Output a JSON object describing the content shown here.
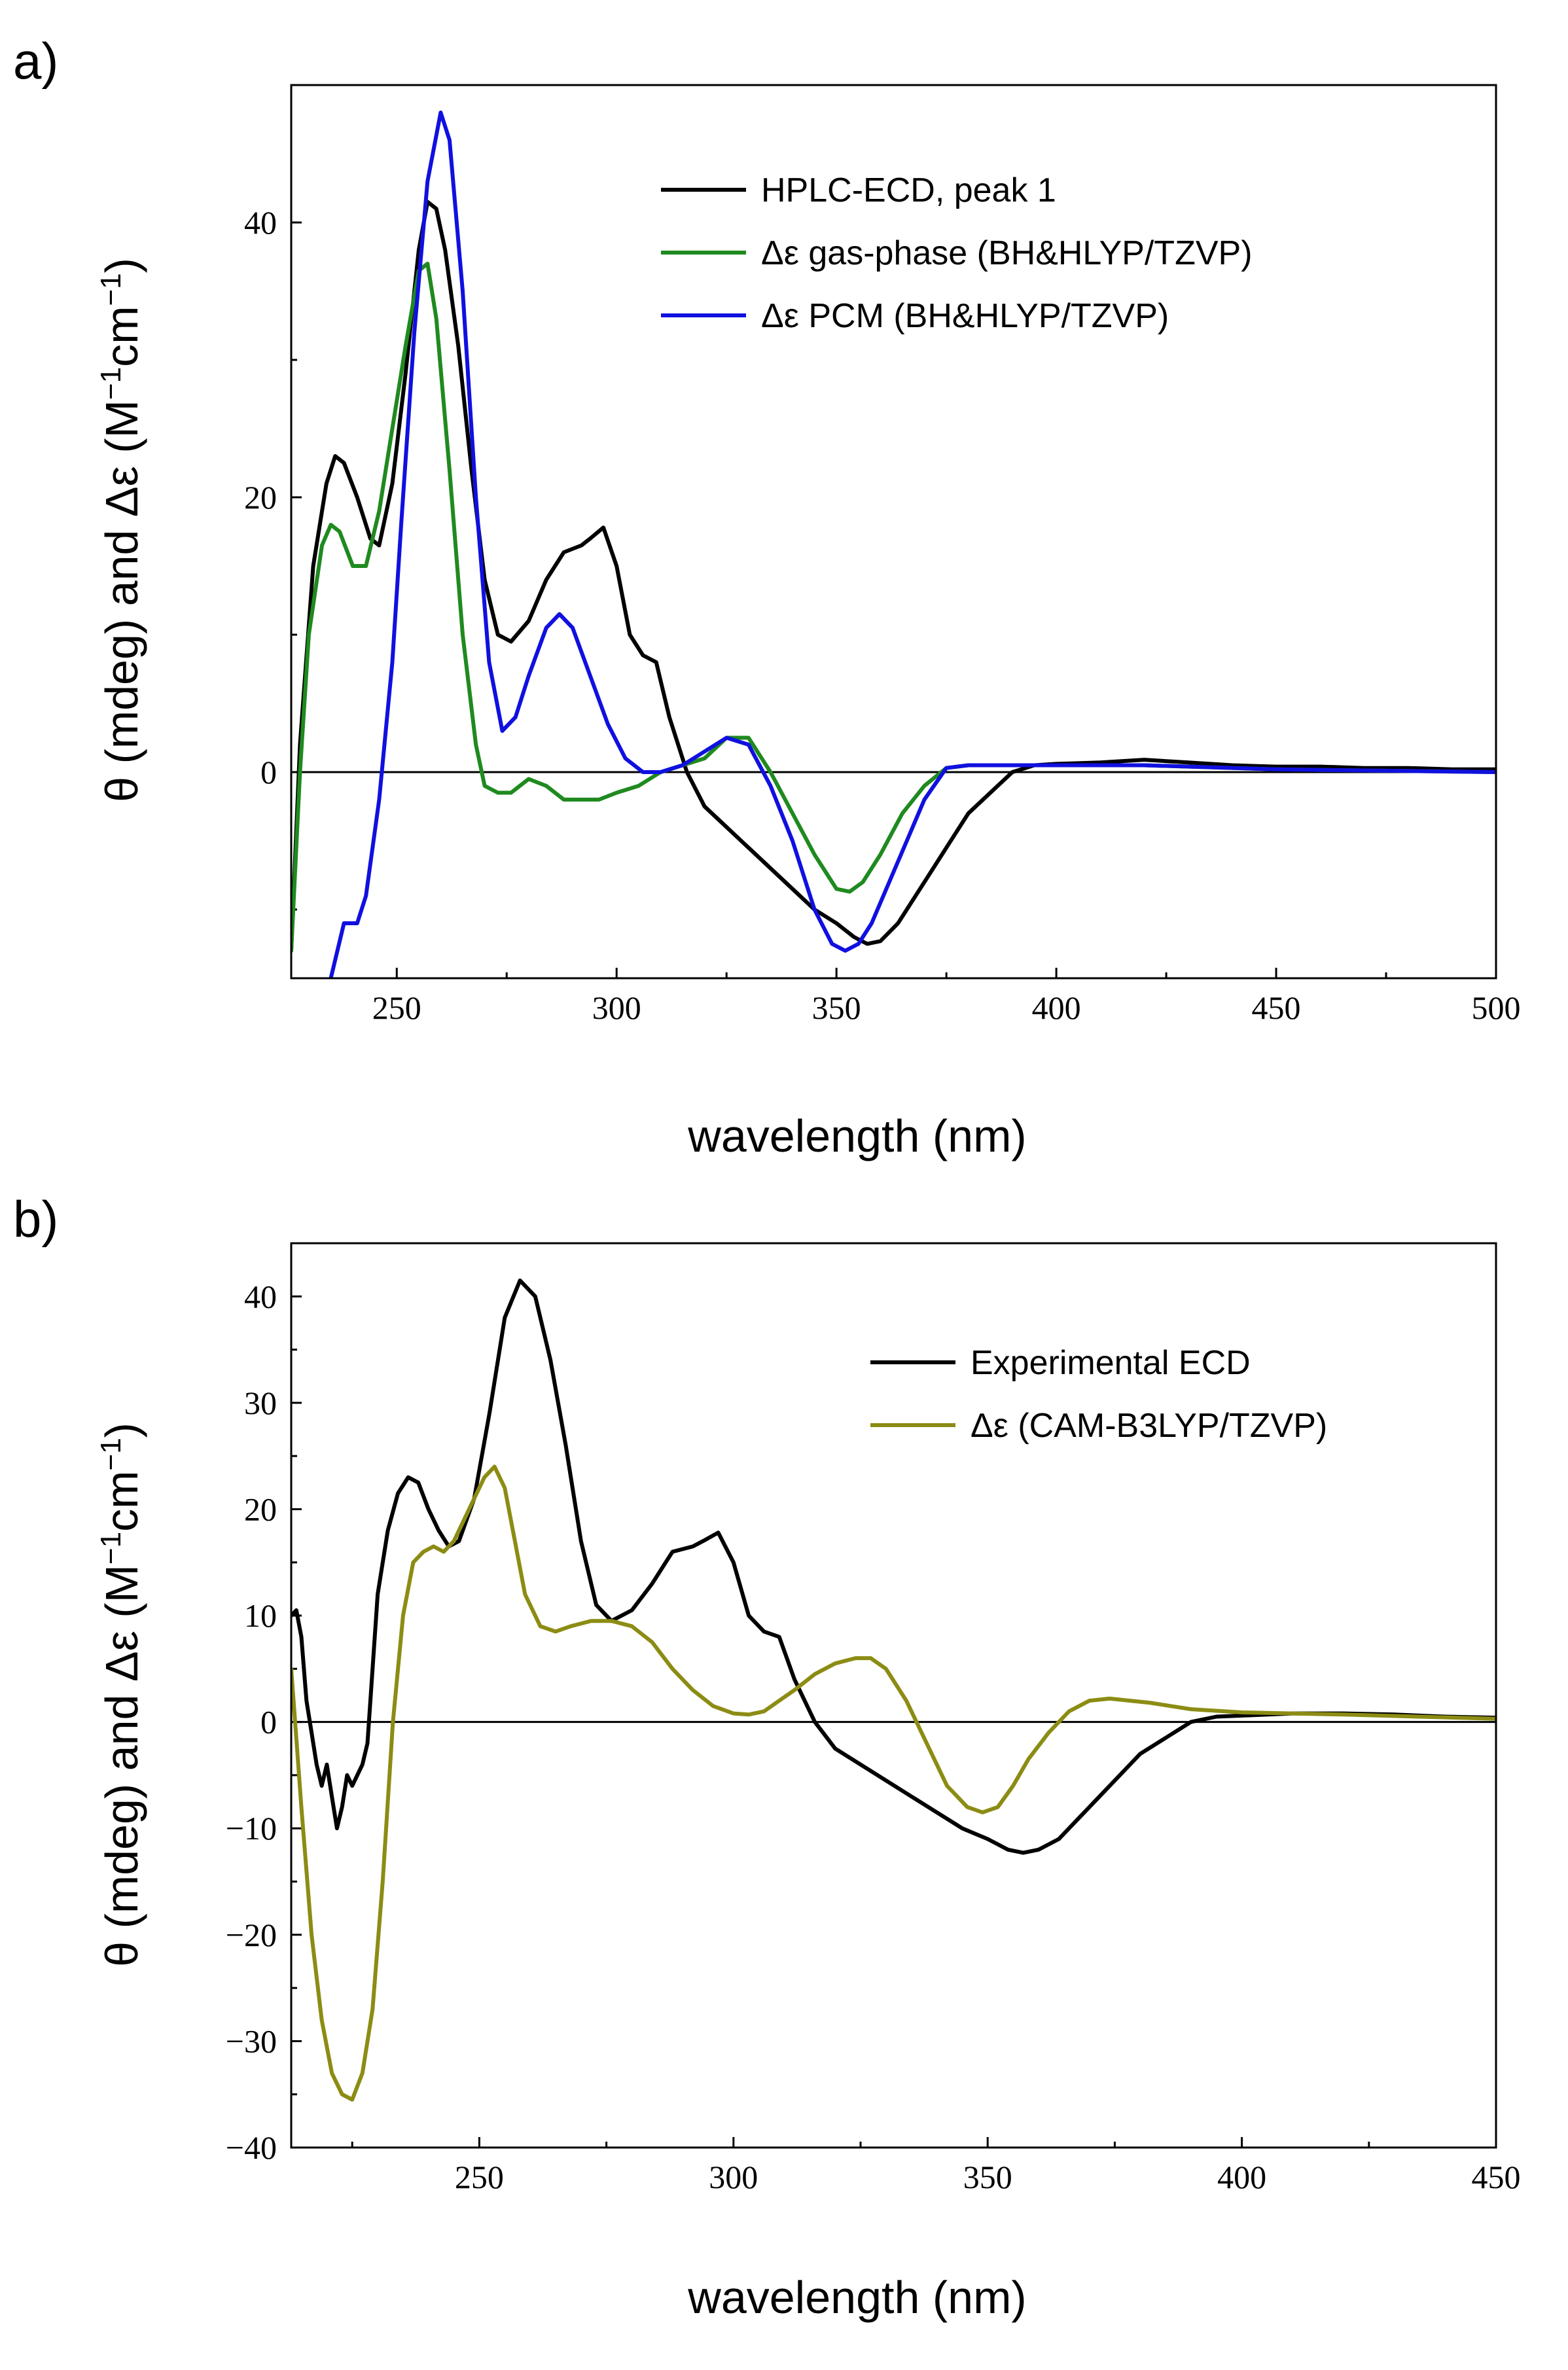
{
  "chart_data": [
    {
      "type": "line",
      "panel_label": "a)",
      "xlabel": "wavelength (nm)",
      "ylabel": "θ (mdeg) and Δε (M⁻¹cm⁻¹)",
      "ylabel_parts": {
        "prefix": "θ (mdeg) and Δε (M",
        "sup1": "−1",
        "mid": "cm",
        "sup2": "−1",
        "suffix": ")"
      },
      "xlim": [
        226,
        500
      ],
      "ylim": [
        -15,
        50
      ],
      "xticks": [
        250,
        300,
        350,
        400,
        450,
        500
      ],
      "xtick_labels": [
        "250",
        "300",
        "350",
        "400",
        "450",
        "500"
      ],
      "yticks": [
        0,
        20,
        40
      ],
      "ytick_labels": [
        "0",
        "20",
        "40"
      ],
      "zero_line": true,
      "legend_position": "top-right",
      "series": [
        {
          "name": "HPLC-ECD, peak 1",
          "color": "#000000",
          "x": [
            226,
            228,
            231,
            234,
            236,
            238,
            241,
            244,
            246,
            249,
            252,
            255,
            257,
            259,
            261,
            264,
            267,
            270,
            273,
            276,
            280,
            284,
            288,
            292,
            294,
            297,
            300,
            303,
            306,
            309,
            312,
            316,
            320,
            325,
            330,
            335,
            340,
            345,
            350,
            354,
            357,
            360,
            364,
            368,
            372,
            376,
            380,
            385,
            390,
            395,
            400,
            410,
            420,
            430,
            440,
            450,
            460,
            470,
            480,
            490,
            500
          ],
          "y": [
            -13,
            2,
            15,
            21,
            23,
            22.5,
            20,
            17,
            16.5,
            21,
            29,
            38,
            41.5,
            41,
            38,
            31,
            22,
            14,
            10,
            9.5,
            11,
            14,
            16,
            16.5,
            17,
            17.8,
            15,
            10,
            8.5,
            8,
            4,
            0,
            -2.5,
            -4,
            -5.5,
            -7,
            -8.5,
            -10,
            -11,
            -12,
            -12.5,
            -12.3,
            -11,
            -9,
            -7,
            -5,
            -3,
            -1.5,
            0,
            0.5,
            0.6,
            0.7,
            0.9,
            0.7,
            0.5,
            0.4,
            0.4,
            0.3,
            0.3,
            0.2,
            0.2
          ]
        },
        {
          "name": "Δε gas-phase (BH&HLYP/TZVP)",
          "color": "#1f8a1f",
          "x": [
            226,
            228,
            230,
            233,
            235,
            237,
            240,
            243,
            246,
            249,
            252,
            255,
            257,
            259,
            262,
            265,
            268,
            270,
            273,
            276,
            280,
            284,
            288,
            292,
            296,
            300,
            305,
            310,
            315,
            320,
            325,
            330,
            335,
            340,
            345,
            350,
            353,
            356,
            360,
            365,
            370,
            375,
            380,
            385,
            390,
            400,
            420,
            450,
            500
          ],
          "y": [
            -13,
            0,
            10,
            16.5,
            18,
            17.5,
            15,
            15,
            19,
            25,
            31,
            36.5,
            37,
            33,
            22,
            10,
            2,
            -1,
            -1.5,
            -1.5,
            -0.5,
            -1,
            -2,
            -2,
            -2,
            -1.5,
            -1,
            0,
            0.5,
            1,
            2.5,
            2.5,
            0,
            -3,
            -6,
            -8.5,
            -8.7,
            -8,
            -6,
            -3,
            -1,
            0.3,
            0.5,
            0.5,
            0.5,
            0.5,
            0.5,
            0.2,
            0
          ]
        },
        {
          "name": "Δε PCM (BH&HLYP/TZVP)",
          "color": "#1010e0",
          "x": [
            235,
            238,
            241,
            243,
            246,
            249,
            251,
            254,
            257,
            260,
            262,
            265,
            268,
            271,
            274,
            277,
            280,
            284,
            287,
            290,
            294,
            298,
            302,
            306,
            310,
            315,
            320,
            325,
            330,
            335,
            340,
            345,
            349,
            352,
            355,
            358,
            362,
            366,
            370,
            375,
            380,
            385,
            390,
            400,
            420,
            450,
            500
          ],
          "y": [
            -15,
            -11,
            -11,
            -9,
            -2,
            8,
            18,
            32,
            43,
            48,
            46,
            35,
            20,
            8,
            3,
            4,
            7,
            10.5,
            11.5,
            10.5,
            7,
            3.5,
            1,
            0,
            0,
            0.5,
            1.5,
            2.5,
            2,
            -1,
            -5,
            -10,
            -12.5,
            -13,
            -12.5,
            -11,
            -8,
            -5,
            -2,
            0.3,
            0.5,
            0.5,
            0.5,
            0.5,
            0.5,
            0.2,
            0
          ]
        }
      ]
    },
    {
      "type": "line",
      "panel_label": "b)",
      "xlabel": "wavelength (nm)",
      "ylabel": "θ (mdeg) and Δε (M⁻¹cm⁻¹)",
      "ylabel_parts": {
        "prefix": "θ (mdeg) and Δε (M",
        "sup1": "−1",
        "mid": "cm",
        "sup2": "−1",
        "suffix": ")"
      },
      "xlim": [
        213,
        450
      ],
      "ylim": [
        -40,
        45
      ],
      "xticks": [
        250,
        300,
        350,
        400,
        450
      ],
      "xtick_labels": [
        "250",
        "300",
        "350",
        "400",
        "450"
      ],
      "yticks": [
        -40,
        -30,
        -20,
        -10,
        0,
        10,
        20,
        30,
        40
      ],
      "ytick_labels": [
        "−40",
        "−30",
        "−20",
        "−10",
        "0",
        "10",
        "20",
        "30",
        "40"
      ],
      "zero_line": true,
      "legend_position": "top-right",
      "series": [
        {
          "name": "Experimental ECD",
          "color": "#000000",
          "x": [
            213,
            214,
            215,
            216,
            217,
            218,
            219,
            220,
            221,
            222,
            223,
            224,
            225,
            226,
            227,
            228,
            229,
            230,
            232,
            234,
            236,
            238,
            240,
            242,
            244,
            246,
            249,
            252,
            255,
            258,
            261,
            264,
            267,
            270,
            273,
            276,
            280,
            284,
            288,
            292,
            294,
            297,
            300,
            303,
            306,
            309,
            312,
            316,
            320,
            325,
            330,
            335,
            340,
            345,
            350,
            354,
            357,
            360,
            364,
            368,
            372,
            376,
            380,
            385,
            390,
            395,
            400,
            410,
            420,
            430,
            440,
            450
          ],
          "y": [
            10,
            10.5,
            8,
            2,
            -1,
            -4,
            -6,
            -4,
            -7,
            -10,
            -8,
            -5,
            -6,
            -5,
            -4,
            -2,
            5,
            12,
            18,
            21.5,
            23,
            22.5,
            20,
            18,
            16.5,
            17,
            21,
            29,
            38,
            41.5,
            40,
            34,
            26,
            17,
            11,
            9.5,
            10.5,
            13,
            16,
            16.5,
            17,
            17.8,
            15,
            10,
            8.5,
            8,
            4,
            0,
            -2.5,
            -4,
            -5.5,
            -7,
            -8.5,
            -10,
            -11,
            -12,
            -12.3,
            -12,
            -11,
            -9,
            -7,
            -5,
            -3,
            -1.5,
            0,
            0.5,
            0.6,
            0.8,
            0.8,
            0.7,
            0.5,
            0.4
          ]
        },
        {
          "name": "Δε (CAM-B3LYP/TZVP)",
          "color": "#8c8c14",
          "x": [
            213,
            215,
            217,
            219,
            221,
            223,
            225,
            227,
            229,
            231,
            233,
            235,
            237,
            239,
            241,
            243,
            245,
            247,
            249,
            251,
            253,
            255,
            257,
            259,
            262,
            265,
            268,
            272,
            276,
            280,
            284,
            288,
            292,
            296,
            300,
            303,
            306,
            309,
            312,
            316,
            320,
            324,
            327,
            330,
            334,
            338,
            342,
            346,
            349,
            352,
            355,
            358,
            362,
            366,
            370,
            374,
            378,
            382,
            386,
            390,
            400,
            420,
            450
          ],
          "y": [
            5,
            -8,
            -20,
            -28,
            -33,
            -35,
            -35.5,
            -33,
            -27,
            -15,
            0,
            10,
            15,
            16,
            16.5,
            16,
            17,
            19,
            21,
            23,
            24,
            22,
            17,
            12,
            9,
            8.5,
            9,
            9.5,
            9.5,
            9,
            7.5,
            5,
            3,
            1.5,
            0.8,
            0.7,
            1,
            2,
            3,
            4.5,
            5.5,
            6,
            6,
            5,
            2,
            -2,
            -6,
            -8,
            -8.5,
            -8,
            -6,
            -3.5,
            -1,
            1,
            2,
            2.2,
            2,
            1.8,
            1.5,
            1.2,
            0.9,
            0.7,
            0.3
          ]
        }
      ]
    }
  ]
}
